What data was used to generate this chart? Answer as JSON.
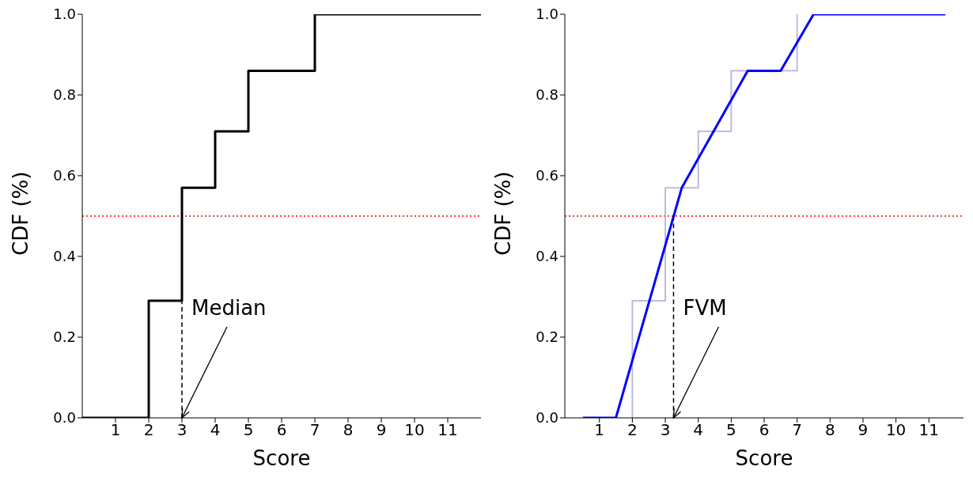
{
  "chart_data": [
    {
      "type": "step",
      "xlabel": "Score",
      "ylabel": "CDF (%)",
      "xlim": [
        0,
        12
      ],
      "ylim": [
        0,
        1
      ],
      "xticks": [
        1,
        2,
        3,
        4,
        5,
        6,
        7,
        8,
        9,
        10,
        11
      ],
      "yticks": [
        {
          "value": 0,
          "label": "0.0"
        },
        {
          "value": 0.2,
          "label": "0.2"
        },
        {
          "value": 0.4,
          "label": "0.4"
        },
        {
          "value": 0.6,
          "label": "0.6"
        },
        {
          "value": 0.8,
          "label": "0.8"
        },
        {
          "value": 1,
          "label": "1.0"
        }
      ],
      "grid": false,
      "series": [
        {
          "color": "#000000",
          "x": [
            0,
            2,
            3,
            4,
            5,
            7,
            12
          ],
          "values": [
            0,
            0.29,
            0.57,
            0.71,
            0.86,
            1,
            1
          ]
        },
        {
          "type": "line",
          "line_style": "dashed",
          "color": "#000000",
          "x": [
            3,
            3
          ],
          "values": [
            0,
            0.5
          ]
        }
      ],
      "ref_lines": [
        {
          "axis": "y",
          "value": 0.5,
          "color": "#ff0000",
          "line_style": "dotted"
        }
      ],
      "annotations": [
        {
          "text": "Median",
          "x": 3,
          "y": 0
        }
      ]
    },
    {
      "type": "line",
      "xlabel": "Score",
      "ylabel": "CDF (%)",
      "xlim": [
        -0.05,
        12.05
      ],
      "ylim": [
        0,
        1
      ],
      "xticks": [
        1,
        2,
        3,
        4,
        5,
        6,
        7,
        8,
        9,
        10,
        11
      ],
      "yticks": [
        {
          "value": 0,
          "label": "0.0"
        },
        {
          "value": 0.2,
          "label": "0.2"
        },
        {
          "value": 0.4,
          "label": "0.4"
        },
        {
          "value": 0.6,
          "label": "0.6"
        },
        {
          "value": 0.8,
          "label": "0.8"
        },
        {
          "value": 1,
          "label": "1.0"
        }
      ],
      "grid": false,
      "series": [
        {
          "type": "step",
          "color": "#b4b4dc",
          "x": [
            2,
            2,
            3,
            4,
            5,
            7
          ],
          "values": [
            0,
            0.29,
            0.57,
            0.71,
            0.86,
            1
          ]
        },
        {
          "color": "#0000ff",
          "x": [
            0.5,
            1.5,
            3.5,
            5.5,
            6.5,
            7.5,
            11.5
          ],
          "values": [
            0,
            0,
            0.57,
            0.86,
            0.86,
            1,
            1
          ]
        },
        {
          "type": "line",
          "line_style": "dashed",
          "color": "#000000",
          "x": [
            3.25,
            3.25
          ],
          "values": [
            0,
            0.5
          ]
        }
      ],
      "ref_lines": [
        {
          "axis": "y",
          "value": 0.5,
          "color": "#ff0000",
          "line_style": "dotted"
        }
      ],
      "annotations": [
        {
          "text": "FVM",
          "x": 3.25,
          "y": 0
        }
      ]
    }
  ]
}
